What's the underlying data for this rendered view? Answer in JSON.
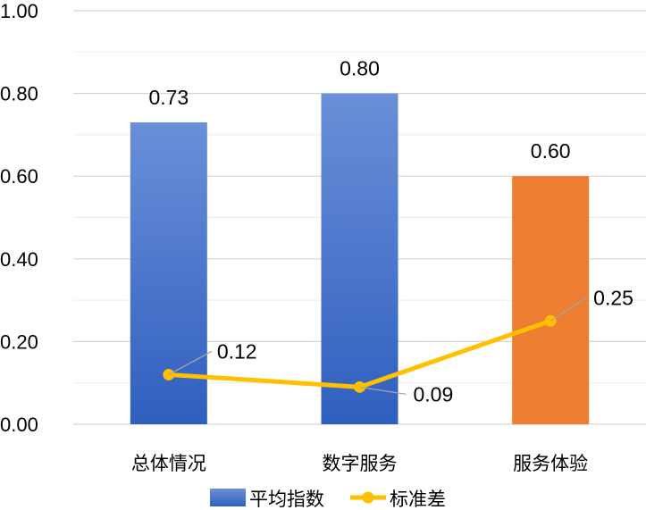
{
  "chart_data": {
    "type": "bar",
    "categories": [
      "总体情况",
      "数字服务",
      "服务体验"
    ],
    "series": [
      {
        "name": "平均指数",
        "kind": "bar",
        "values": [
          0.73,
          0.8,
          0.6
        ],
        "value_labels": [
          "0.73",
          "0.80",
          "0.60"
        ],
        "colors": [
          "#4472c4",
          "#4472c4",
          "#ed7d31"
        ]
      },
      {
        "name": "标准差",
        "kind": "line",
        "values": [
          0.12,
          0.09,
          0.25
        ],
        "value_labels": [
          "0.12",
          "0.09",
          "0.25"
        ],
        "color": "#ffc000"
      }
    ],
    "ylim": [
      0,
      1
    ],
    "yticks": [
      "0.00",
      "0.20",
      "0.40",
      "0.60",
      "0.80",
      "1.00"
    ],
    "xlabel": "",
    "ylabel": "",
    "grid": true,
    "legend_position": "bottom"
  }
}
